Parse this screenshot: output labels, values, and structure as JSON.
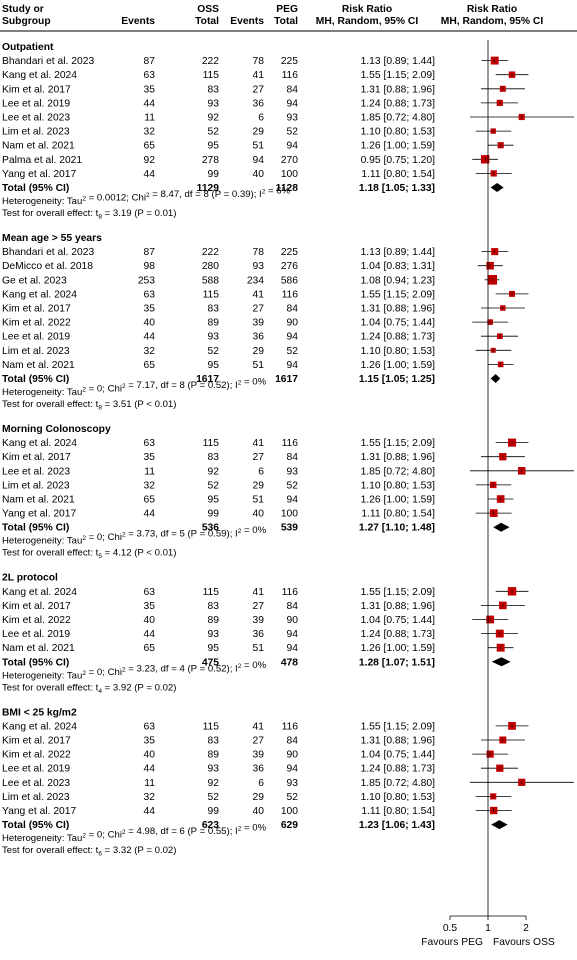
{
  "header": {
    "study_line1": "Study or",
    "study_line2": "Subgroup",
    "oss_group": "OSS",
    "peg_group": "PEG",
    "events": "Events",
    "total": "Total",
    "rr_line1": "Risk Ratio",
    "rr_line2": "MH, Random, 95% CI",
    "plot_line1": "Risk Ratio",
    "plot_line2": "MH, Random, 95% CI"
  },
  "axis": {
    "scale": "log",
    "ticks": [
      "0.5",
      "1",
      "2"
    ],
    "tick_values": [
      0.5,
      1,
      2
    ],
    "min": 0.5,
    "max": 2,
    "favours_left": "Favours PEG",
    "favours_right": "Favours OSS"
  },
  "colors": {
    "study_marker": "#c00000",
    "summary_diamond": "#000000",
    "line": "#000000"
  },
  "chart_data": {
    "type": "forest",
    "subgroups": [
      {
        "title": "Outpatient",
        "studies": [
          {
            "name": "Bhandari et al. 2023",
            "oss_events": "87",
            "oss_total": "222",
            "peg_events": "78",
            "peg_total": "225",
            "rr_text": "1.13 [0.89; 1.44]",
            "rr": 1.13,
            "lo": 0.89,
            "hi": 1.44
          },
          {
            "name": "Kang et al. 2024",
            "oss_events": "63",
            "oss_total": "115",
            "peg_events": "41",
            "peg_total": "116",
            "rr_text": "1.55 [1.15; 2.09]",
            "rr": 1.55,
            "lo": 1.15,
            "hi": 2.09
          },
          {
            "name": "Kim et al. 2017",
            "oss_events": "35",
            "oss_total": "83",
            "peg_events": "27",
            "peg_total": "84",
            "rr_text": "1.31 [0.88; 1.96]",
            "rr": 1.31,
            "lo": 0.88,
            "hi": 1.96
          },
          {
            "name": "Lee et al. 2019",
            "oss_events": "44",
            "oss_total": "93",
            "peg_events": "36",
            "peg_total": "94",
            "rr_text": "1.24 [0.88; 1.73]",
            "rr": 1.24,
            "lo": 0.88,
            "hi": 1.73
          },
          {
            "name": "Lee et al. 2023",
            "oss_events": "11",
            "oss_total": "92",
            "peg_events": "6",
            "peg_total": "93",
            "rr_text": "1.85 [0.72; 4.80]",
            "rr": 1.85,
            "lo": 0.72,
            "hi": 4.8
          },
          {
            "name": "Lim et al. 2023",
            "oss_events": "32",
            "oss_total": "52",
            "peg_events": "29",
            "peg_total": "52",
            "rr_text": "1.10 [0.80; 1.53]",
            "rr": 1.1,
            "lo": 0.8,
            "hi": 1.53
          },
          {
            "name": "Nam et al. 2021",
            "oss_events": "65",
            "oss_total": "95",
            "peg_events": "51",
            "peg_total": "94",
            "rr_text": "1.26 [1.00; 1.59]",
            "rr": 1.26,
            "lo": 1.0,
            "hi": 1.59
          },
          {
            "name": "Palma et al. 2021",
            "oss_events": "92",
            "oss_total": "278",
            "peg_events": "94",
            "peg_total": "270",
            "rr_text": "0.95 [0.75; 1.20]",
            "rr": 0.95,
            "lo": 0.75,
            "hi": 1.2
          },
          {
            "name": "Yang et al. 2017",
            "oss_events": "44",
            "oss_total": "99",
            "peg_events": "40",
            "peg_total": "100",
            "rr_text": "1.11 [0.80; 1.54]",
            "rr": 1.11,
            "lo": 0.8,
            "hi": 1.54
          }
        ],
        "total": {
          "label": "Total (95% CI)",
          "oss_total": "1129",
          "peg_total": "1128",
          "rr_text": "1.18 [1.05; 1.33]",
          "rr": 1.18,
          "lo": 1.05,
          "hi": 1.33
        },
        "heterogeneity": {
          "prefix": "Heterogeneity: Tau",
          "tau_val": " = 0.0012; Chi",
          "chi_val": " = 8.47, df = 8 (P = 0.39); I",
          "i_val": " = 6%"
        },
        "overall": {
          "prefix": "Test for overall effect: t",
          "sub": "8",
          "rest": " = 3.19 (P = 0.01)"
        }
      },
      {
        "title": "Mean age > 55 years",
        "studies": [
          {
            "name": "Bhandari et al. 2023",
            "oss_events": "87",
            "oss_total": "222",
            "peg_events": "78",
            "peg_total": "225",
            "rr_text": "1.13 [0.89; 1.44]",
            "rr": 1.13,
            "lo": 0.89,
            "hi": 1.44
          },
          {
            "name": "DeMicco et al. 2018",
            "oss_events": "98",
            "oss_total": "280",
            "peg_events": "93",
            "peg_total": "276",
            "rr_text": "1.04 [0.83; 1.31]",
            "rr": 1.04,
            "lo": 0.83,
            "hi": 1.31
          },
          {
            "name": "Ge et al. 2023",
            "oss_events": "253",
            "oss_total": "588",
            "peg_events": "234",
            "peg_total": "586",
            "rr_text": "1.08 [0.94; 1.23]",
            "rr": 1.08,
            "lo": 0.94,
            "hi": 1.23
          },
          {
            "name": "Kang et al. 2024",
            "oss_events": "63",
            "oss_total": "115",
            "peg_events": "41",
            "peg_total": "116",
            "rr_text": "1.55 [1.15; 2.09]",
            "rr": 1.55,
            "lo": 1.15,
            "hi": 2.09
          },
          {
            "name": "Kim et al. 2017",
            "oss_events": "35",
            "oss_total": "83",
            "peg_events": "27",
            "peg_total": "84",
            "rr_text": "1.31 [0.88; 1.96]",
            "rr": 1.31,
            "lo": 0.88,
            "hi": 1.96
          },
          {
            "name": "Kim et al. 2022",
            "oss_events": "40",
            "oss_total": "89",
            "peg_events": "39",
            "peg_total": "90",
            "rr_text": "1.04 [0.75; 1.44]",
            "rr": 1.04,
            "lo": 0.75,
            "hi": 1.44
          },
          {
            "name": "Lee et al. 2019",
            "oss_events": "44",
            "oss_total": "93",
            "peg_events": "36",
            "peg_total": "94",
            "rr_text": "1.24 [0.88; 1.73]",
            "rr": 1.24,
            "lo": 0.88,
            "hi": 1.73
          },
          {
            "name": "Lim et al. 2023",
            "oss_events": "32",
            "oss_total": "52",
            "peg_events": "29",
            "peg_total": "52",
            "rr_text": "1.10 [0.80; 1.53]",
            "rr": 1.1,
            "lo": 0.8,
            "hi": 1.53
          },
          {
            "name": "Nam et al. 2021",
            "oss_events": "65",
            "oss_total": "95",
            "peg_events": "51",
            "peg_total": "94",
            "rr_text": "1.26 [1.00; 1.59]",
            "rr": 1.26,
            "lo": 1.0,
            "hi": 1.59
          }
        ],
        "total": {
          "label": "Total (95% CI)",
          "oss_total": "1617",
          "peg_total": "1617",
          "rr_text": "1.15 [1.05; 1.25]",
          "rr": 1.15,
          "lo": 1.05,
          "hi": 1.25
        },
        "heterogeneity": {
          "prefix": "Heterogeneity: Tau",
          "tau_val": " = 0; Chi",
          "chi_val": " = 7.17, df = 8 (P = 0.52); I",
          "i_val": " = 0%"
        },
        "overall": {
          "prefix": "Test for overall effect: t",
          "sub": "8",
          "rest": " = 3.51 (P < 0.01)"
        }
      },
      {
        "title": "Morning Colonoscopy",
        "studies": [
          {
            "name": "Kang et al. 2024",
            "oss_events": "63",
            "oss_total": "115",
            "peg_events": "41",
            "peg_total": "116",
            "rr_text": "1.55 [1.15; 2.09]",
            "rr": 1.55,
            "lo": 1.15,
            "hi": 2.09
          },
          {
            "name": "Kim et al. 2017",
            "oss_events": "35",
            "oss_total": "83",
            "peg_events": "27",
            "peg_total": "84",
            "rr_text": "1.31 [0.88; 1.96]",
            "rr": 1.31,
            "lo": 0.88,
            "hi": 1.96
          },
          {
            "name": "Lee et al. 2023",
            "oss_events": "11",
            "oss_total": "92",
            "peg_events": "6",
            "peg_total": "93",
            "rr_text": "1.85 [0.72; 4.80]",
            "rr": 1.85,
            "lo": 0.72,
            "hi": 4.8
          },
          {
            "name": "Lim et al. 2023",
            "oss_events": "32",
            "oss_total": "52",
            "peg_events": "29",
            "peg_total": "52",
            "rr_text": "1.10 [0.80; 1.53]",
            "rr": 1.1,
            "lo": 0.8,
            "hi": 1.53
          },
          {
            "name": "Nam et al. 2021",
            "oss_events": "65",
            "oss_total": "95",
            "peg_events": "51",
            "peg_total": "94",
            "rr_text": "1.26 [1.00; 1.59]",
            "rr": 1.26,
            "lo": 1.0,
            "hi": 1.59
          },
          {
            "name": "Yang et al. 2017",
            "oss_events": "44",
            "oss_total": "99",
            "peg_events": "40",
            "peg_total": "100",
            "rr_text": "1.11 [0.80; 1.54]",
            "rr": 1.11,
            "lo": 0.8,
            "hi": 1.54
          }
        ],
        "total": {
          "label": "Total (95% CI)",
          "oss_total": "536",
          "peg_total": "539",
          "rr_text": "1.27 [1.10; 1.48]",
          "rr": 1.27,
          "lo": 1.1,
          "hi": 1.48
        },
        "heterogeneity": {
          "prefix": "Heterogeneity: Tau",
          "tau_val": " = 0; Chi",
          "chi_val": " = 3.73, df = 5 (P = 0.59); I",
          "i_val": " = 0%"
        },
        "overall": {
          "prefix": "Test for overall effect: t",
          "sub": "5",
          "rest": " = 4.12 (P < 0.01)"
        }
      },
      {
        "title": "2L protocol",
        "studies": [
          {
            "name": "Kang et al. 2024",
            "oss_events": "63",
            "oss_total": "115",
            "peg_events": "41",
            "peg_total": "116",
            "rr_text": "1.55 [1.15; 2.09]",
            "rr": 1.55,
            "lo": 1.15,
            "hi": 2.09
          },
          {
            "name": "Kim et al. 2017",
            "oss_events": "35",
            "oss_total": "83",
            "peg_events": "27",
            "peg_total": "84",
            "rr_text": "1.31 [0.88; 1.96]",
            "rr": 1.31,
            "lo": 0.88,
            "hi": 1.96
          },
          {
            "name": "Kim et al. 2022",
            "oss_events": "40",
            "oss_total": "89",
            "peg_events": "39",
            "peg_total": "90",
            "rr_text": "1.04 [0.75; 1.44]",
            "rr": 1.04,
            "lo": 0.75,
            "hi": 1.44
          },
          {
            "name": "Lee et al. 2019",
            "oss_events": "44",
            "oss_total": "93",
            "peg_events": "36",
            "peg_total": "94",
            "rr_text": "1.24 [0.88; 1.73]",
            "rr": 1.24,
            "lo": 0.88,
            "hi": 1.73
          },
          {
            "name": "Nam et al. 2021",
            "oss_events": "65",
            "oss_total": "95",
            "peg_events": "51",
            "peg_total": "94",
            "rr_text": "1.26 [1.00; 1.59]",
            "rr": 1.26,
            "lo": 1.0,
            "hi": 1.59
          }
        ],
        "total": {
          "label": "Total (95% CI)",
          "oss_total": "475",
          "peg_total": "478",
          "rr_text": "1.28 [1.07; 1.51]",
          "rr": 1.28,
          "lo": 1.07,
          "hi": 1.51
        },
        "heterogeneity": {
          "prefix": "Heterogeneity: Tau",
          "tau_val": " = 0; Chi",
          "chi_val": " = 3.23, df = 4 (P = 0.52); I",
          "i_val": " = 0%"
        },
        "overall": {
          "prefix": "Test for overall effect: t",
          "sub": "4",
          "rest": " = 3.92 (P = 0.02)"
        }
      },
      {
        "title": "BMI < 25 kg/m2",
        "studies": [
          {
            "name": "Kang et al. 2024",
            "oss_events": "63",
            "oss_total": "115",
            "peg_events": "41",
            "peg_total": "116",
            "rr_text": "1.55 [1.15; 2.09]",
            "rr": 1.55,
            "lo": 1.15,
            "hi": 2.09
          },
          {
            "name": "Kim et al. 2017",
            "oss_events": "35",
            "oss_total": "83",
            "peg_events": "27",
            "peg_total": "84",
            "rr_text": "1.31 [0.88; 1.96]",
            "rr": 1.31,
            "lo": 0.88,
            "hi": 1.96
          },
          {
            "name": "Kim et al. 2022",
            "oss_events": "40",
            "oss_total": "89",
            "peg_events": "39",
            "peg_total": "90",
            "rr_text": "1.04 [0.75; 1.44]",
            "rr": 1.04,
            "lo": 0.75,
            "hi": 1.44
          },
          {
            "name": "Lee et al. 2019",
            "oss_events": "44",
            "oss_total": "93",
            "peg_events": "36",
            "peg_total": "94",
            "rr_text": "1.24 [0.88; 1.73]",
            "rr": 1.24,
            "lo": 0.88,
            "hi": 1.73
          },
          {
            "name": "Lee et al. 2023",
            "oss_events": "11",
            "oss_total": "92",
            "peg_events": "6",
            "peg_total": "93",
            "rr_text": "1.85 [0.72; 4.80]",
            "rr": 1.85,
            "lo": 0.72,
            "hi": 4.8
          },
          {
            "name": "Lim et al. 2023",
            "oss_events": "32",
            "oss_total": "52",
            "peg_events": "29",
            "peg_total": "52",
            "rr_text": "1.10 [0.80; 1.53]",
            "rr": 1.1,
            "lo": 0.8,
            "hi": 1.53
          },
          {
            "name": "Yang et al. 2017",
            "oss_events": "44",
            "oss_total": "99",
            "peg_events": "40",
            "peg_total": "100",
            "rr_text": "1.11 [0.80; 1.54]",
            "rr": 1.11,
            "lo": 0.8,
            "hi": 1.54
          }
        ],
        "total": {
          "label": "Total (95% CI)",
          "oss_total": "623",
          "peg_total": "629",
          "rr_text": "1.23 [1.06; 1.43]",
          "rr": 1.23,
          "lo": 1.06,
          "hi": 1.43
        },
        "heterogeneity": {
          "prefix": "Heterogeneity: Tau",
          "tau_val": " = 0; Chi",
          "chi_val": " = 4.98, df = 6 (P = 0.55); I",
          "i_val": " = 0%"
        },
        "overall": {
          "prefix": "Test for overall effect: t",
          "sub": "6",
          "rest": " = 3.32 (P = 0.02)"
        }
      }
    ]
  }
}
